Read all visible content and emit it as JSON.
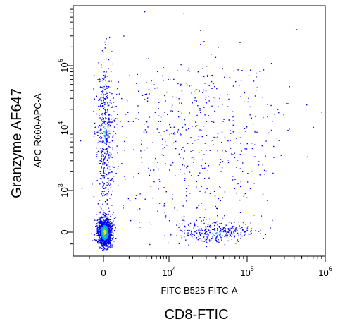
{
  "chart_data": {
    "type": "scatter",
    "title": "",
    "xlabel": "FITC B525-FITC-A",
    "ylabel": "APC R660-APC-A",
    "outer_xlabel": "CD8-FTIC",
    "outer_ylabel": "Granzyme AF647",
    "x_scale": "biexponential",
    "y_scale": "biexponential",
    "xlim": [
      -2000,
      1000000
    ],
    "ylim": [
      -300,
      1000000
    ],
    "x_ticks": [
      {
        "value": 0,
        "base": "0",
        "exp": ""
      },
      {
        "value": 10000,
        "base": "10",
        "exp": "4"
      },
      {
        "value": 100000,
        "base": "10",
        "exp": "5"
      },
      {
        "value": 1000000,
        "base": "10",
        "exp": "6"
      }
    ],
    "y_ticks": [
      {
        "value": 0,
        "base": "0",
        "exp": ""
      },
      {
        "value": 1000,
        "base": "10",
        "exp": "3"
      },
      {
        "value": 10000,
        "base": "10",
        "exp": "4"
      },
      {
        "value": 100000,
        "base": "10",
        "exp": "5"
      }
    ],
    "colormap": "density (blue to green to yellow to red)",
    "grid": false,
    "legend": "none",
    "populations": [
      {
        "x_center": 100,
        "y_center": 0,
        "count": 1200,
        "density": "high"
      },
      {
        "x_center": 100,
        "y_center": 8000,
        "count": 420,
        "density": "medium"
      },
      {
        "x_center": 40000,
        "y_center": 0,
        "count": 300,
        "density": "medium"
      },
      {
        "x_center": 20000,
        "y_center": 10000,
        "count": 300,
        "density": "low"
      }
    ]
  },
  "colors": {
    "axis": "#000000",
    "dot_low": "#0000ee",
    "dot_mid": "#00aaff",
    "dot_high": "#33cc66",
    "dot_peak": "#ffdd00"
  }
}
